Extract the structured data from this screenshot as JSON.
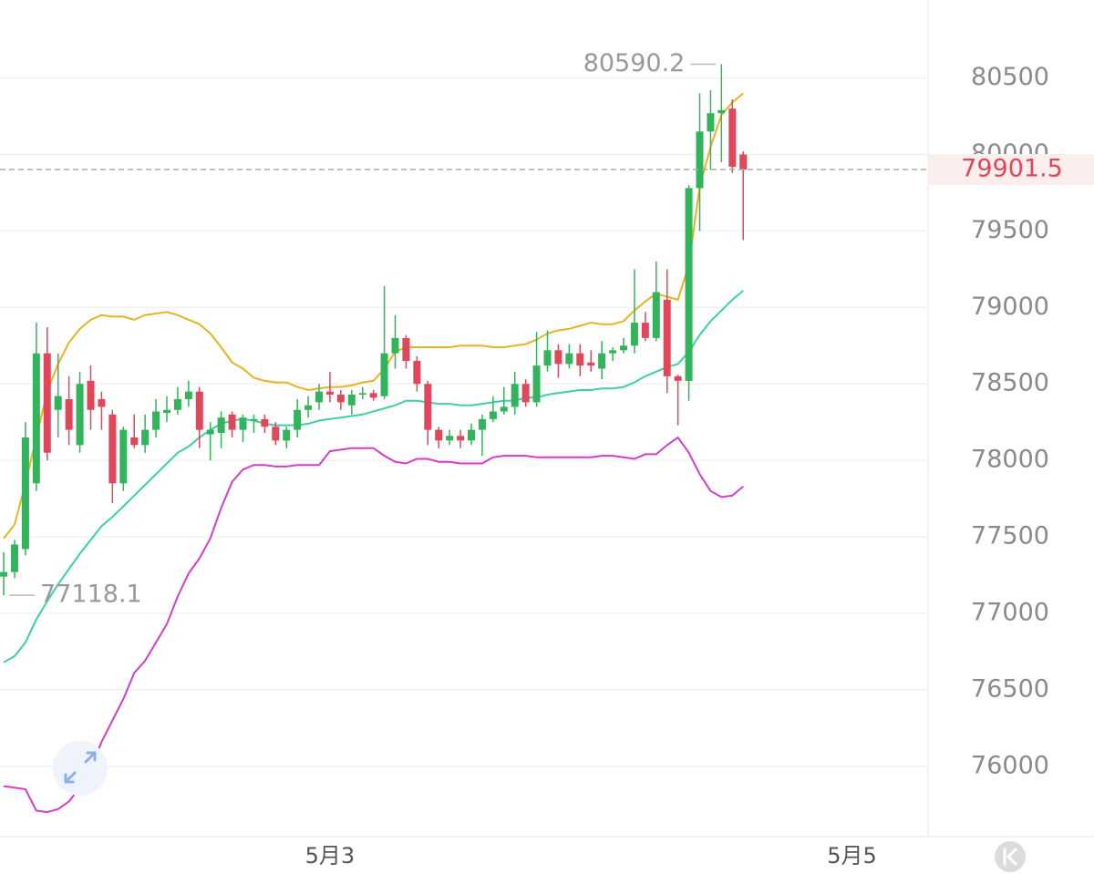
{
  "chart_data": {
    "type": "candlestick",
    "x": [
      0,
      1,
      2,
      3,
      4,
      5,
      6,
      7,
      8,
      9,
      10,
      11,
      12,
      13,
      14,
      15,
      16,
      17,
      18,
      19,
      20,
      21,
      22,
      23,
      24,
      25,
      26,
      27,
      28,
      29,
      30,
      31,
      32,
      33,
      34,
      35,
      36,
      37,
      38,
      39,
      40,
      41,
      42,
      43,
      44,
      45,
      46,
      47,
      48,
      49,
      50,
      51,
      52,
      53,
      54,
      55,
      56,
      57,
      58,
      59,
      60,
      61,
      62,
      63,
      64,
      65,
      66,
      67,
      68
    ],
    "open": [
      77240,
      77270,
      77420,
      77850,
      78700,
      78330,
      78400,
      78100,
      78520,
      78400,
      78300,
      77850,
      78150,
      78100,
      78200,
      78310,
      78330,
      78400,
      78450,
      78170,
      78180,
      78300,
      78200,
      78260,
      78270,
      78220,
      78130,
      78200,
      78330,
      78380,
      78450,
      78430,
      78360,
      78430,
      78440,
      78420,
      78700,
      78800,
      78650,
      78500,
      78200,
      78130,
      78160,
      78130,
      78200,
      78270,
      78320,
      78350,
      78500,
      78380,
      78620,
      78720,
      78630,
      78700,
      78640,
      78600,
      78700,
      78720,
      78750,
      78900,
      78800,
      79050,
      78550,
      78520,
      79780,
      80150,
      80270,
      80300,
      80000
    ],
    "high": [
      77400,
      77480,
      78250,
      78900,
      78870,
      78700,
      78550,
      78580,
      78620,
      78450,
      78330,
      78220,
      78300,
      78300,
      78400,
      78420,
      78480,
      78520,
      78480,
      78250,
      78320,
      78320,
      78300,
      78300,
      78300,
      78250,
      78220,
      78400,
      78420,
      78500,
      78580,
      78460,
      78460,
      78480,
      78460,
      79140,
      78950,
      78820,
      78680,
      78520,
      78220,
      78200,
      78200,
      78240,
      78300,
      78420,
      78480,
      78580,
      78530,
      78840,
      78850,
      78760,
      78760,
      78760,
      78720,
      78780,
      78740,
      78800,
      79250,
      78970,
      79300,
      79250,
      78560,
      79800,
      80400,
      80420,
      80590.2,
      80360,
      80020
    ],
    "low": [
      77118.1,
      77230,
      77380,
      77800,
      78000,
      78150,
      78100,
      78050,
      78200,
      78200,
      77720,
      77800,
      78080,
      78050,
      78150,
      78250,
      78300,
      78350,
      78080,
      78000,
      78080,
      78150,
      78120,
      78180,
      78180,
      78100,
      78080,
      78150,
      78280,
      78330,
      78380,
      78330,
      78300,
      78400,
      78390,
      78400,
      78600,
      78600,
      78450,
      78100,
      78080,
      78100,
      78080,
      78100,
      78030,
      78250,
      78300,
      78300,
      78350,
      78350,
      78580,
      78540,
      78600,
      78550,
      78580,
      78530,
      78650,
      78700,
      78700,
      78780,
      78780,
      78440,
      78230,
      78390,
      79500,
      79900,
      79950,
      79880,
      79440
    ],
    "close": [
      77270,
      77450,
      78150,
      78700,
      78050,
      78420,
      78200,
      78500,
      78330,
      78350,
      77850,
      78200,
      78100,
      78200,
      78320,
      78330,
      78400,
      78450,
      78200,
      78200,
      78280,
      78200,
      78280,
      78270,
      78220,
      78130,
      78200,
      78330,
      78360,
      78450,
      78430,
      78380,
      78430,
      78440,
      78410,
      78700,
      78800,
      78650,
      78500,
      78200,
      78130,
      78160,
      78130,
      78200,
      78270,
      78320,
      78350,
      78500,
      78380,
      78620,
      78720,
      78630,
      78700,
      78620,
      78620,
      78700,
      78720,
      78750,
      78900,
      78800,
      79100,
      78550,
      78520,
      79780,
      80150,
      80270,
      80290,
      79920,
      79901.5
    ],
    "up_color": "#33b35c",
    "down_color": "#e0475b",
    "lines": [
      {
        "color": "#e8b321",
        "values": [
          77490,
          77580,
          77850,
          78150,
          78450,
          78630,
          78770,
          78860,
          78920,
          78950,
          78940,
          78940,
          78920,
          78950,
          78960,
          78970,
          78950,
          78920,
          78890,
          78830,
          78740,
          78640,
          78600,
          78540,
          78520,
          78510,
          78510,
          78480,
          78460,
          78470,
          78480,
          78480,
          78490,
          78510,
          78520,
          78600,
          78710,
          78740,
          78740,
          78740,
          78740,
          78740,
          78750,
          78750,
          78750,
          78740,
          78740,
          78750,
          78760,
          78790,
          78830,
          78850,
          78860,
          78880,
          78900,
          78890,
          78890,
          78910,
          78980,
          79040,
          79090,
          79070,
          79050,
          79280,
          79790,
          80050,
          80260,
          80340,
          80400
        ]
      },
      {
        "color": "#3ccfa5",
        "values": [
          76680,
          76720,
          76810,
          76960,
          77080,
          77190,
          77290,
          77390,
          77480,
          77570,
          77630,
          77700,
          77770,
          77840,
          77910,
          77980,
          78050,
          78090,
          78150,
          78200,
          78240,
          78260,
          78270,
          78260,
          78240,
          78230,
          78230,
          78230,
          78240,
          78260,
          78270,
          78280,
          78290,
          78300,
          78320,
          78340,
          78360,
          78390,
          78390,
          78380,
          78370,
          78370,
          78360,
          78360,
          78370,
          78380,
          78390,
          78390,
          78410,
          78410,
          78430,
          78440,
          78450,
          78460,
          78460,
          78470,
          78470,
          78480,
          78510,
          78550,
          78580,
          78610,
          78630,
          78710,
          78820,
          78910,
          78980,
          79050,
          79110
        ]
      },
      {
        "color": "#d13fc8",
        "values": [
          75870,
          75860,
          75850,
          75710,
          75700,
          75720,
          75770,
          75860,
          75980,
          76160,
          76300,
          76440,
          76610,
          76690,
          76810,
          76930,
          77110,
          77260,
          77360,
          77490,
          77690,
          77860,
          77940,
          77970,
          77970,
          77960,
          77960,
          77970,
          77970,
          77970,
          78060,
          78070,
          78080,
          78080,
          78080,
          78030,
          77990,
          77980,
          78010,
          78010,
          77990,
          77990,
          77980,
          77980,
          77980,
          78020,
          78030,
          78030,
          78030,
          78020,
          78020,
          78020,
          78020,
          78020,
          78020,
          78030,
          78030,
          78020,
          78010,
          78040,
          78040,
          78100,
          78150,
          78050,
          77910,
          77800,
          77760,
          77770,
          77830
        ]
      }
    ],
    "xlim": [
      -0.34,
      85
    ],
    "xticks": [
      {
        "value": 30,
        "label": "5月3"
      },
      {
        "value": 78,
        "label": "5月5"
      }
    ],
    "ylim": [
      75540,
      81010
    ],
    "yticks": [
      76000,
      76500,
      77000,
      77500,
      78000,
      78500,
      79000,
      79500,
      80000,
      80500
    ],
    "grid": true
  }
}
